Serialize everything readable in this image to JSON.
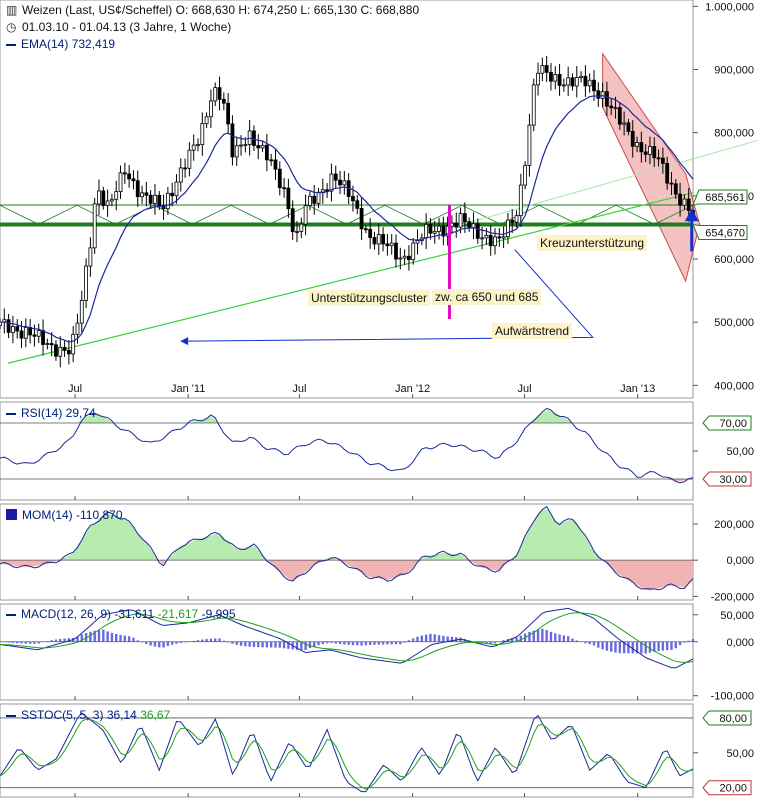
{
  "header": {
    "instrument_line": "Weizen (Last, US¢/Scheffel)  O: 668,630  H: 674,250  L: 665,130  C: 668,880",
    "period_line": "01.03.10 - 01.04.13 (3 Jahre, 1 Woche)",
    "ema_label": "EMA(14)",
    "ema_value": "732,419"
  },
  "annotations": {
    "kreuz": "Kreuzunterstützung",
    "cluster": "Unterstützungscluster",
    "zw": "zw. ca 650 und 685",
    "trend": "Aufwärtstrend"
  },
  "colors": {
    "candle": "#000000",
    "ema": "#1a2a9a",
    "support": "#1e7e1e",
    "trend": "#3ad13a",
    "channel_fill": "#f4b8b8",
    "pos_fill": "#b8ebb0",
    "neg_fill": "#f0b4b4",
    "magenta": "#e010c0",
    "arrow_blue": "#1030d0"
  },
  "chart_data": [
    {
      "type": "candlestick",
      "name": "Weizen",
      "x_start": "2010-03-01",
      "x_end": "2013-04-01",
      "period": "weekly",
      "x_tick_labels": [
        "Jul",
        "Jan '11",
        "Jul",
        "Jan '12",
        "Jul",
        "Jan '13"
      ],
      "x_tick_dates": [
        "2010-07-01",
        "2011-01-01",
        "2011-07-01",
        "2012-01-01",
        "2012-07-01",
        "2013-01-01"
      ],
      "y_ticks": [
        400000,
        500000,
        600000,
        700000,
        800000,
        900000,
        1000000
      ],
      "y_tick_labels": [
        "400,000",
        "500,000",
        "600,000",
        "700,000",
        "800,000",
        "900,000",
        "1.000,000"
      ],
      "ylim": [
        380000,
        1010000
      ],
      "close_anchors": [
        [
          "2010-03-01",
          495000
        ],
        [
          "2010-04-15",
          485000
        ],
        [
          "2010-05-20",
          462000
        ],
        [
          "2010-06-25",
          455000
        ],
        [
          "2010-07-10",
          520000
        ],
        [
          "2010-07-25",
          620000
        ],
        [
          "2010-08-05",
          715000
        ],
        [
          "2010-08-25",
          680000
        ],
        [
          "2010-09-20",
          740000
        ],
        [
          "2010-10-20",
          700000
        ],
        [
          "2010-11-20",
          680000
        ],
        [
          "2010-12-20",
          740000
        ],
        [
          "2011-01-20",
          790000
        ],
        [
          "2011-02-10",
          870000
        ],
        [
          "2011-02-25",
          860000
        ],
        [
          "2011-03-15",
          760000
        ],
        [
          "2011-04-10",
          800000
        ],
        [
          "2011-05-10",
          760000
        ],
        [
          "2011-06-10",
          700000
        ],
        [
          "2011-06-25",
          630000
        ],
        [
          "2011-07-10",
          680000
        ],
        [
          "2011-08-01",
          700000
        ],
        [
          "2011-08-25",
          735000
        ],
        [
          "2011-09-20",
          700000
        ],
        [
          "2011-10-20",
          640000
        ],
        [
          "2011-11-20",
          620000
        ],
        [
          "2011-12-15",
          600000
        ],
        [
          "2012-01-20",
          640000
        ],
        [
          "2012-02-20",
          650000
        ],
        [
          "2012-03-20",
          660000
        ],
        [
          "2012-04-20",
          640000
        ],
        [
          "2012-05-20",
          625000
        ],
        [
          "2012-06-10",
          660000
        ],
        [
          "2012-06-20",
          680000
        ],
        [
          "2012-07-05",
          780000
        ],
        [
          "2012-07-20",
          900000
        ],
        [
          "2012-08-10",
          890000
        ],
        [
          "2012-09-10",
          880000
        ],
        [
          "2012-10-10",
          880000
        ],
        [
          "2012-11-05",
          860000
        ],
        [
          "2012-12-01",
          820000
        ],
        [
          "2013-01-01",
          780000
        ],
        [
          "2013-02-01",
          760000
        ],
        [
          "2013-03-01",
          710000
        ],
        [
          "2013-04-01",
          668880
        ]
      ],
      "ema_label": "EMA(14)",
      "price_labels": [
        685561,
        654670
      ],
      "price_label_texts": [
        "685,561",
        "654,670"
      ],
      "horizontal_lines": [
        685561,
        654670
      ],
      "annotations": [
        "Kreuzunterstützung",
        "Unterstützungscluster",
        "zw. ca 650 und 685",
        "Aufwärtstrend"
      ]
    },
    {
      "type": "line",
      "name": "RSI(14)",
      "value_label": "29,74",
      "y_ticks": [
        30,
        50,
        70
      ],
      "y_tick_labels": [
        "30,00",
        "50,00",
        "70,00"
      ],
      "ylim": [
        15,
        85
      ],
      "anchors": [
        [
          "2010-03-01",
          45
        ],
        [
          "2010-04-15",
          40
        ],
        [
          "2010-05-20",
          48
        ],
        [
          "2010-06-25",
          58
        ],
        [
          "2010-07-10",
          72
        ],
        [
          "2010-08-05",
          78
        ],
        [
          "2010-09-01",
          70
        ],
        [
          "2010-10-01",
          62
        ],
        [
          "2010-11-01",
          55
        ],
        [
          "2010-12-01",
          62
        ],
        [
          "2011-01-01",
          70
        ],
        [
          "2011-02-10",
          75
        ],
        [
          "2011-03-15",
          55
        ],
        [
          "2011-04-10",
          60
        ],
        [
          "2011-05-10",
          52
        ],
        [
          "2011-06-10",
          48
        ],
        [
          "2011-07-10",
          55
        ],
        [
          "2011-08-10",
          58
        ],
        [
          "2011-09-20",
          50
        ],
        [
          "2011-10-20",
          42
        ],
        [
          "2011-12-15",
          35
        ],
        [
          "2012-01-20",
          52
        ],
        [
          "2012-03-01",
          55
        ],
        [
          "2012-04-20",
          50
        ],
        [
          "2012-05-20",
          45
        ],
        [
          "2012-06-20",
          58
        ],
        [
          "2012-07-20",
          75
        ],
        [
          "2012-08-10",
          80
        ],
        [
          "2012-09-10",
          72
        ],
        [
          "2012-10-10",
          62
        ],
        [
          "2012-11-05",
          50
        ],
        [
          "2012-12-01",
          40
        ],
        [
          "2013-01-01",
          32
        ],
        [
          "2013-02-01",
          35
        ],
        [
          "2013-03-01",
          28
        ],
        [
          "2013-04-01",
          29.74
        ]
      ],
      "levels": [
        70,
        30
      ]
    },
    {
      "type": "area",
      "name": "MOM(14)",
      "value_label": "-110,870",
      "y_ticks": [
        200000,
        0,
        -200000
      ],
      "y_tick_labels": [
        "200,000",
        "0,000",
        "-200,000"
      ],
      "ylim": [
        -220000,
        310000
      ],
      "anchors": [
        [
          "2010-03-01",
          -20000
        ],
        [
          "2010-04-15",
          -40000
        ],
        [
          "2010-05-20",
          -20000
        ],
        [
          "2010-06-25",
          30000
        ],
        [
          "2010-07-25",
          180000
        ],
        [
          "2010-08-20",
          260000
        ],
        [
          "2010-09-20",
          230000
        ],
        [
          "2010-10-20",
          120000
        ],
        [
          "2010-11-20",
          -30000
        ],
        [
          "2010-12-20",
          80000
        ],
        [
          "2011-01-20",
          120000
        ],
        [
          "2011-02-20",
          150000
        ],
        [
          "2011-03-20",
          60000
        ],
        [
          "2011-04-20",
          80000
        ],
        [
          "2011-05-20",
          -40000
        ],
        [
          "2011-06-20",
          -120000
        ],
        [
          "2011-07-20",
          -40000
        ],
        [
          "2011-08-20",
          20000
        ],
        [
          "2011-09-20",
          -30000
        ],
        [
          "2011-10-20",
          -90000
        ],
        [
          "2011-11-20",
          -110000
        ],
        [
          "2011-12-20",
          -80000
        ],
        [
          "2012-01-20",
          20000
        ],
        [
          "2012-02-20",
          40000
        ],
        [
          "2012-03-20",
          30000
        ],
        [
          "2012-04-20",
          -40000
        ],
        [
          "2012-05-20",
          -60000
        ],
        [
          "2012-06-20",
          40000
        ],
        [
          "2012-07-20",
          250000
        ],
        [
          "2012-08-05",
          290000
        ],
        [
          "2012-08-25",
          200000
        ],
        [
          "2012-09-20",
          230000
        ],
        [
          "2012-10-20",
          60000
        ],
        [
          "2012-11-20",
          -50000
        ],
        [
          "2012-12-20",
          -120000
        ],
        [
          "2013-01-20",
          -170000
        ],
        [
          "2013-02-20",
          -140000
        ],
        [
          "2013-03-20",
          -150000
        ],
        [
          "2013-04-01",
          -110870
        ]
      ]
    },
    {
      "type": "line",
      "name": "MACD(12, 26, 9)",
      "series_labels": [
        "-31,611",
        "-21,617",
        "-9,995"
      ],
      "y_ticks": [
        50000,
        0,
        -100000
      ],
      "y_tick_labels": [
        "50,000",
        "0,000",
        "-100,000"
      ],
      "ylim": [
        -108000,
        70000
      ],
      "anchors": [
        [
          "2010-03-01",
          -5000
        ],
        [
          "2010-05-01",
          -15000
        ],
        [
          "2010-07-01",
          5000
        ],
        [
          "2010-08-15",
          50000
        ],
        [
          "2010-10-01",
          60000
        ],
        [
          "2010-11-20",
          30000
        ],
        [
          "2011-01-01",
          35000
        ],
        [
          "2011-02-20",
          50000
        ],
        [
          "2011-04-01",
          30000
        ],
        [
          "2011-06-01",
          5000
        ],
        [
          "2011-07-10",
          -20000
        ],
        [
          "2011-08-20",
          -15000
        ],
        [
          "2011-10-10",
          -30000
        ],
        [
          "2011-12-15",
          -40000
        ],
        [
          "2012-02-01",
          -5000
        ],
        [
          "2012-03-20",
          5000
        ],
        [
          "2012-05-10",
          -10000
        ],
        [
          "2012-06-20",
          10000
        ],
        [
          "2012-08-01",
          55000
        ],
        [
          "2012-09-10",
          62000
        ],
        [
          "2012-10-20",
          45000
        ],
        [
          "2012-12-01",
          5000
        ],
        [
          "2013-01-15",
          -30000
        ],
        [
          "2013-03-01",
          -50000
        ],
        [
          "2013-04-01",
          -31611
        ]
      ]
    },
    {
      "type": "line",
      "name": "SSTOC(5, 5, 3)",
      "series_labels": [
        "36,14",
        "36,67"
      ],
      "y_ticks": [
        20,
        50,
        80
      ],
      "y_tick_labels": [
        "20,00",
        "50,00",
        "80,00"
      ],
      "ylim": [
        12,
        92
      ],
      "anchors": [
        [
          "2010-03-01",
          30
        ],
        [
          "2010-04-01",
          55
        ],
        [
          "2010-05-01",
          35
        ],
        [
          "2010-06-01",
          45
        ],
        [
          "2010-07-10",
          85
        ],
        [
          "2010-08-15",
          70
        ],
        [
          "2010-09-15",
          40
        ],
        [
          "2010-10-15",
          75
        ],
        [
          "2010-11-15",
          35
        ],
        [
          "2010-12-15",
          80
        ],
        [
          "2011-01-20",
          55
        ],
        [
          "2011-02-15",
          80
        ],
        [
          "2011-03-15",
          30
        ],
        [
          "2011-04-15",
          70
        ],
        [
          "2011-05-15",
          25
        ],
        [
          "2011-06-15",
          60
        ],
        [
          "2011-07-15",
          35
        ],
        [
          "2011-08-15",
          70
        ],
        [
          "2011-09-15",
          25
        ],
        [
          "2011-10-15",
          15
        ],
        [
          "2011-11-15",
          40
        ],
        [
          "2011-12-15",
          25
        ],
        [
          "2012-01-15",
          55
        ],
        [
          "2012-02-15",
          30
        ],
        [
          "2012-03-15",
          70
        ],
        [
          "2012-04-15",
          25
        ],
        [
          "2012-05-15",
          55
        ],
        [
          "2012-06-15",
          30
        ],
        [
          "2012-07-20",
          85
        ],
        [
          "2012-08-15",
          60
        ],
        [
          "2012-09-15",
          75
        ],
        [
          "2012-10-15",
          35
        ],
        [
          "2012-11-15",
          50
        ],
        [
          "2012-12-15",
          25
        ],
        [
          "2013-01-15",
          20
        ],
        [
          "2013-02-15",
          55
        ],
        [
          "2013-03-10",
          30
        ],
        [
          "2013-04-01",
          36.14
        ]
      ],
      "levels": [
        80,
        20
      ]
    }
  ]
}
